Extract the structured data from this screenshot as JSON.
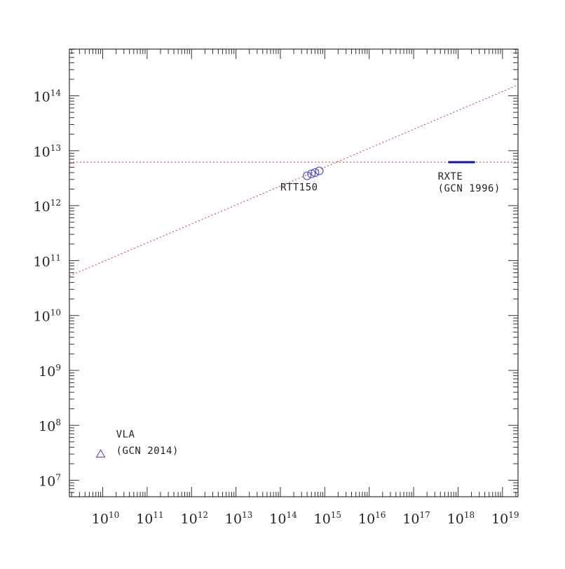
{
  "chart_data": {
    "type": "scatter",
    "title": "",
    "xlabel": "",
    "ylabel": "",
    "x_scale": "log",
    "y_scale": "log",
    "xlim_log10": [
      9.25,
      19.35
    ],
    "ylim_log10": [
      6.7,
      14.85
    ],
    "x_ticks": [
      {
        "base": "10",
        "exp": "10",
        "log10": 10
      },
      {
        "base": "10",
        "exp": "11",
        "log10": 11
      },
      {
        "base": "10",
        "exp": "12",
        "log10": 12
      },
      {
        "base": "10",
        "exp": "13",
        "log10": 13
      },
      {
        "base": "10",
        "exp": "14",
        "log10": 14
      },
      {
        "base": "10",
        "exp": "15",
        "log10": 15
      },
      {
        "base": "10",
        "exp": "16",
        "log10": 16
      },
      {
        "base": "10",
        "exp": "17",
        "log10": 17
      },
      {
        "base": "10",
        "exp": "18",
        "log10": 18
      },
      {
        "base": "10",
        "exp": "19",
        "log10": 19
      }
    ],
    "y_ticks": [
      {
        "base": "10",
        "exp": "7",
        "log10": 7
      },
      {
        "base": "10",
        "exp": "8",
        "log10": 8
      },
      {
        "base": "10",
        "exp": "9",
        "log10": 9
      },
      {
        "base": "10",
        "exp": "10",
        "log10": 10
      },
      {
        "base": "10",
        "exp": "11",
        "log10": 11
      },
      {
        "base": "10",
        "exp": "12",
        "log10": 12
      },
      {
        "base": "10",
        "exp": "13",
        "log10": 13
      },
      {
        "base": "10",
        "exp": "14",
        "log10": 14
      }
    ],
    "series": [
      {
        "marker": "circle",
        "color": "#3b3bd6",
        "points": [
          {
            "x": 400000000000000.0,
            "y": 3500000000000.0
          },
          {
            "x": 500000000000000.0,
            "y": 3800000000000.0
          },
          {
            "x": 600000000000000.0,
            "y": 4000000000000.0
          },
          {
            "x": 750000000000000.0,
            "y": 4300000000000.0
          }
        ]
      },
      {
        "marker": "triangle",
        "color": "#3b3bd6",
        "points": [
          {
            "x": 9000000000.0,
            "y": 30000000.0
          }
        ]
      },
      {
        "marker": "hline-segment",
        "color": "#1010c0",
        "x_range": [
          6e+17,
          2.4e+18
        ],
        "y": 6200000000000.0
      }
    ],
    "reference_lines": [
      {
        "style": "dotted",
        "color": "#e04040",
        "kind": "horizontal",
        "y": 6200000000000.0
      },
      {
        "style": "dotted",
        "color": "#e04040",
        "kind": "power-law",
        "points": [
          {
            "x": 1780000000.0,
            "y": 52500000000.0
          },
          {
            "x": 2.24e+19,
            "y": 158000000000000.0
          }
        ]
      }
    ],
    "annotations": [
      {
        "text": "RTT150",
        "x": 100000000000000.0,
        "y": 1900000000000.0
      },
      {
        "text": "RXTE",
        "x": 3.5e+17,
        "y": 3000000000000.0
      },
      {
        "text": "(GCN 1996)",
        "x": 3.5e+17,
        "y": 1800000000000.0
      },
      {
        "text": "VLA",
        "x": 20000000000.0,
        "y": 60000000.0
      },
      {
        "text": "(GCN 2014)",
        "x": 20000000000.0,
        "y": 30000000.0
      }
    ],
    "grid": false,
    "legend": "none"
  }
}
